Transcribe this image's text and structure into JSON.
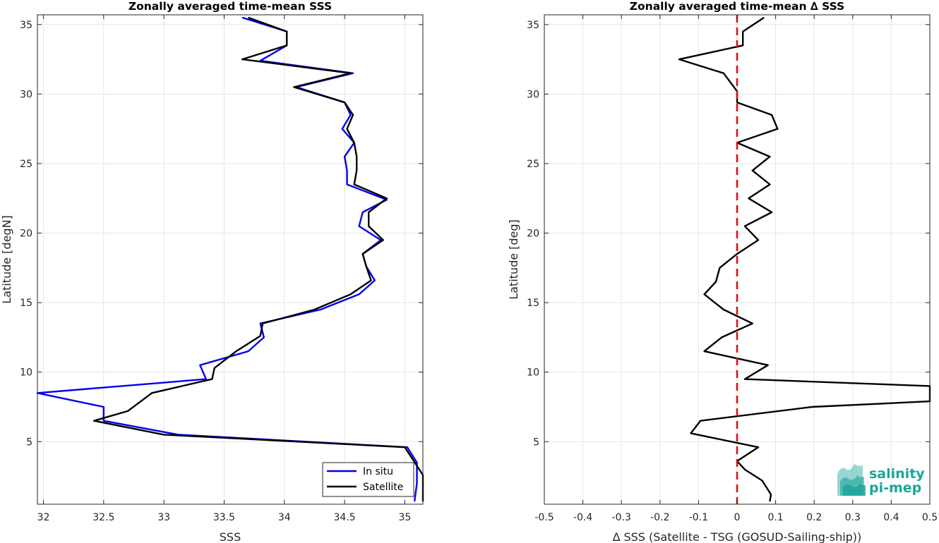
{
  "logo": {
    "line1": "salinity",
    "line2": "pi-mep",
    "color": "#1aa59a"
  },
  "chart_data": [
    {
      "type": "line",
      "title": "Zonally averaged time-mean SSS",
      "xlabel": "SSS",
      "ylabel": "Latitude [degN]",
      "xlim": [
        31.95,
        35.15
      ],
      "ylim": [
        0.5,
        35.7
      ],
      "xticks": [
        32,
        32.5,
        33,
        33.5,
        34,
        34.5,
        35
      ],
      "xtick_labels": [
        "32",
        "32.5",
        "33",
        "33.5",
        "34",
        "34.5",
        "35"
      ],
      "yticks": [
        5,
        10,
        15,
        20,
        25,
        30,
        35
      ],
      "ytick_labels": [
        "5",
        "10",
        "15",
        "20",
        "25",
        "30",
        "35"
      ],
      "grid": true,
      "legend_position": "bottom-right",
      "series": [
        {
          "name": "In situ",
          "color": "#0000ee",
          "points": [
            [
              35.08,
              0.7
            ],
            [
              35.1,
              2
            ],
            [
              35.1,
              3.5
            ],
            [
              35.02,
              4.6
            ],
            [
              33.12,
              5.5
            ],
            [
              32.5,
              6.5
            ],
            [
              32.5,
              7.5
            ],
            [
              31.95,
              8.5
            ],
            [
              33.35,
              9.5
            ],
            [
              33.3,
              10.5
            ],
            [
              33.7,
              11.5
            ],
            [
              33.83,
              12.5
            ],
            [
              33.8,
              13.5
            ],
            [
              34.3,
              14.5
            ],
            [
              34.62,
              15.6
            ],
            [
              34.75,
              16.6
            ],
            [
              34.68,
              17.6
            ],
            [
              34.65,
              18.5
            ],
            [
              34.8,
              19.5
            ],
            [
              34.62,
              20.5
            ],
            [
              34.65,
              21.5
            ],
            [
              34.85,
              22.4
            ],
            [
              34.52,
              23.5
            ],
            [
              34.52,
              24.5
            ],
            [
              34.5,
              25.5
            ],
            [
              34.58,
              26.5
            ],
            [
              34.48,
              27.5
            ],
            [
              34.55,
              28.5
            ],
            [
              34.5,
              29.4
            ],
            [
              34.1,
              30.5
            ],
            [
              34.57,
              31.5
            ],
            [
              33.8,
              32.4
            ],
            [
              34.02,
              33.5
            ],
            [
              34.02,
              34.5
            ],
            [
              33.65,
              35.5
            ]
          ]
        },
        {
          "name": "Satellite",
          "color": "#000000",
          "points": [
            [
              35.15,
              0.7
            ],
            [
              35.15,
              2
            ],
            [
              35.15,
              2.6
            ],
            [
              35.0,
              4.6
            ],
            [
              33.0,
              5.5
            ],
            [
              32.42,
              6.5
            ],
            [
              32.7,
              7.2
            ],
            [
              32.9,
              8.5
            ],
            [
              33.4,
              9.5
            ],
            [
              33.42,
              10.3
            ],
            [
              33.6,
              11.5
            ],
            [
              33.8,
              12.6
            ],
            [
              33.82,
              13.5
            ],
            [
              34.25,
              14.5
            ],
            [
              34.55,
              15.6
            ],
            [
              34.72,
              16.6
            ],
            [
              34.68,
              17.6
            ],
            [
              34.65,
              18.5
            ],
            [
              34.82,
              19.5
            ],
            [
              34.7,
              20.5
            ],
            [
              34.7,
              21.5
            ],
            [
              34.85,
              22.5
            ],
            [
              34.58,
              23.5
            ],
            [
              34.6,
              24.5
            ],
            [
              34.6,
              25.5
            ],
            [
              34.58,
              26.5
            ],
            [
              34.52,
              27.5
            ],
            [
              34.57,
              28.5
            ],
            [
              34.5,
              29.4
            ],
            [
              34.08,
              30.5
            ],
            [
              34.55,
              31.5
            ],
            [
              33.65,
              32.5
            ],
            [
              34.02,
              33.5
            ],
            [
              34.02,
              34.5
            ],
            [
              33.7,
              35.5
            ]
          ]
        }
      ]
    },
    {
      "type": "line",
      "title": "Zonally averaged time-mean ∆ SSS",
      "xlabel": "∆ SSS (Satellite - TSG (GOSUD-Sailing-ship))",
      "ylabel": "Latitude [deg]",
      "xlim": [
        -0.5,
        0.5
      ],
      "ylim": [
        0.5,
        35.7
      ],
      "xticks": [
        -0.5,
        -0.4,
        -0.3,
        -0.2,
        -0.1,
        0,
        0.1,
        0.2,
        0.3,
        0.4,
        0.5
      ],
      "xtick_labels": [
        "-0.5",
        "-0.4",
        "-0.3",
        "-0.2",
        "-0.1",
        "0",
        "0.1",
        "0.2",
        "0.3",
        "0.4",
        "0.5"
      ],
      "yticks": [
        5,
        10,
        15,
        20,
        25,
        30,
        35
      ],
      "ytick_labels": [
        "5",
        "10",
        "15",
        "20",
        "25",
        "30",
        "35"
      ],
      "grid": true,
      "reference_line": {
        "x": 0,
        "color": "#dd1111",
        "style": "dashed"
      },
      "series": [
        {
          "color": "#000000",
          "points": [
            [
              0.085,
              0.7
            ],
            [
              0.088,
              1.2
            ],
            [
              0.065,
              2.2
            ],
            [
              0.02,
              3.0
            ],
            [
              0,
              3.6
            ],
            [
              0.055,
              4.6
            ],
            [
              -0.12,
              5.6
            ],
            [
              -0.095,
              6.5
            ],
            [
              0.195,
              7.5
            ],
            [
              0.5,
              7.9
            ],
            [
              0.5,
              9.0
            ],
            [
              0.02,
              9.5
            ],
            [
              0.08,
              10.5
            ],
            [
              -0.085,
              11.5
            ],
            [
              -0.04,
              12.5
            ],
            [
              0.04,
              13.5
            ],
            [
              -0.035,
              14.5
            ],
            [
              -0.085,
              15.6
            ],
            [
              -0.055,
              16.5
            ],
            [
              -0.045,
              17.5
            ],
            [
              0,
              18.5
            ],
            [
              0.055,
              19.5
            ],
            [
              0.02,
              20.5
            ],
            [
              0.09,
              21.5
            ],
            [
              0.03,
              22.5
            ],
            [
              0.085,
              23.5
            ],
            [
              0.04,
              24.5
            ],
            [
              0.085,
              25.5
            ],
            [
              0,
              26.5
            ],
            [
              0.105,
              27.5
            ],
            [
              0.09,
              28.5
            ],
            [
              0,
              29.4
            ],
            [
              0,
              30.2
            ],
            [
              -0.035,
              31.5
            ],
            [
              -0.15,
              32.5
            ],
            [
              0.015,
              33.5
            ],
            [
              0.015,
              34.5
            ],
            [
              0.07,
              35.5
            ]
          ]
        }
      ]
    }
  ]
}
